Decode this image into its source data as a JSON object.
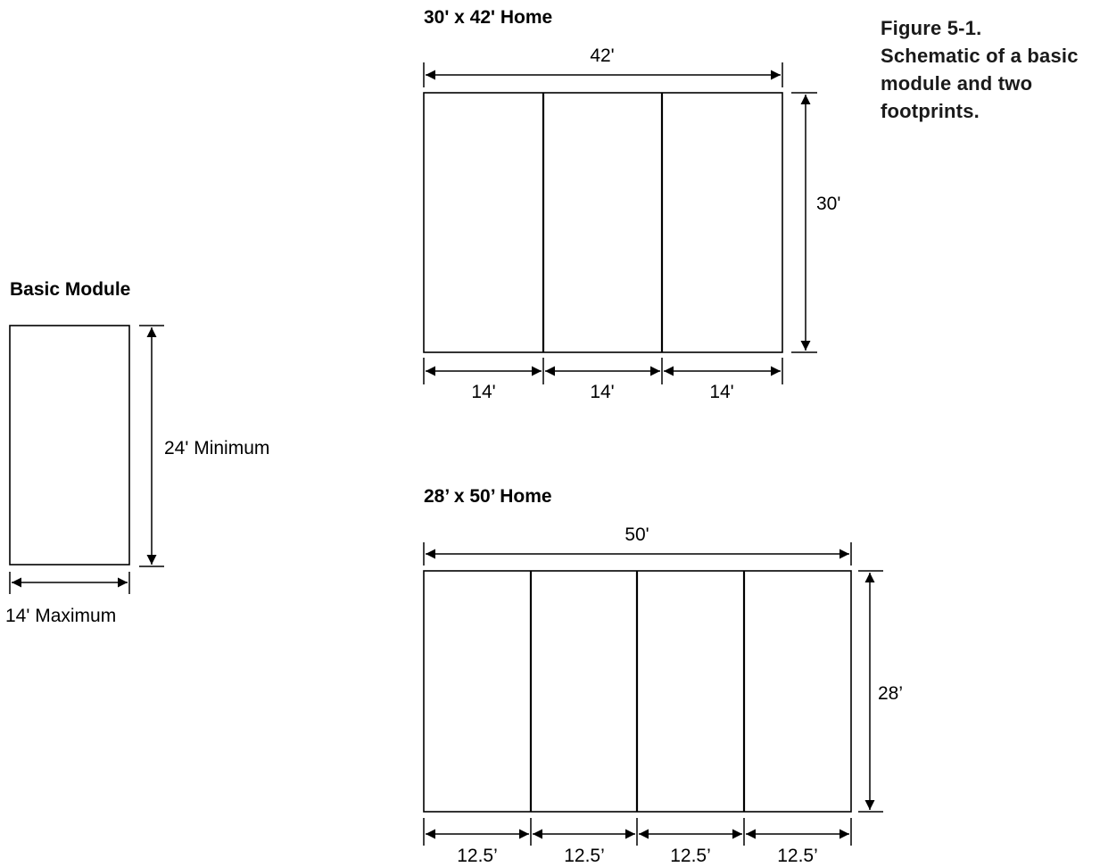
{
  "caption": {
    "lines": [
      "Figure 5-1.",
      "Schematic of a basic",
      "module and two",
      "footprints."
    ]
  },
  "basic_module": {
    "title": "Basic Module",
    "height_label": "24' Minimum",
    "width_label": "14' Maximum"
  },
  "home_30x42": {
    "title": "30' x 42' Home",
    "overall_width": "42'",
    "depth": "30'",
    "module_widths": [
      "14'",
      "14'",
      "14'"
    ]
  },
  "home_28x50": {
    "title": "28’ x 50’ Home",
    "overall_width": "50'",
    "depth": "28’",
    "module_widths": [
      "12.5’",
      "12.5’",
      "12.5’",
      "12.5’"
    ]
  }
}
